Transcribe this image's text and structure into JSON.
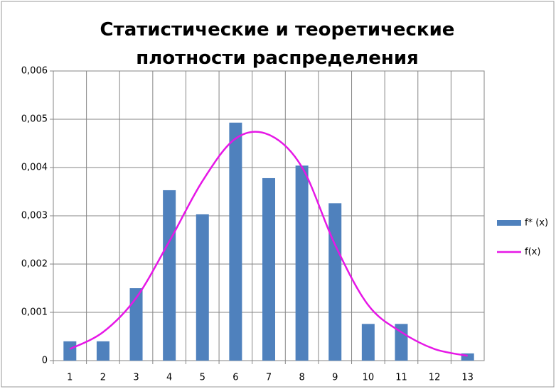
{
  "chart_data": {
    "type": "bar-line",
    "title": "Статистические и теоретические плотности распределения",
    "categories": [
      "1",
      "2",
      "3",
      "4",
      "5",
      "6",
      "7",
      "8",
      "9",
      "10",
      "11",
      "12",
      "13"
    ],
    "series": [
      {
        "name": "f* (x)",
        "type": "bar",
        "color": "#4f81bd",
        "values": [
          0.0004,
          0.0004,
          0.0015,
          0.00353,
          0.00303,
          0.00493,
          0.00378,
          0.00404,
          0.00326,
          0.00076,
          0.00076,
          0,
          0.00015
        ]
      },
      {
        "name": "f(x)",
        "type": "line",
        "color": "#e617e6",
        "values": [
          0.00024,
          0.00059,
          0.0013,
          0.00247,
          0.00372,
          0.0046,
          0.00468,
          0.00401,
          0.0024,
          0.00115,
          0.00059,
          0.00024,
          0.0001
        ]
      }
    ],
    "ylim": [
      0,
      0.006
    ],
    "yticks": [
      0,
      {
        "value": 0.001,
        "label": "0,001"
      },
      {
        "value": 0.002,
        "label": "0,002"
      },
      {
        "value": 0.003,
        "label": "0,003"
      },
      {
        "value": 0.004,
        "label": "0,004"
      },
      {
        "value": 0.005,
        "label": "0,005"
      },
      {
        "value": 0.006,
        "label": "0,006"
      }
    ],
    "grid": true,
    "legend": "right"
  }
}
